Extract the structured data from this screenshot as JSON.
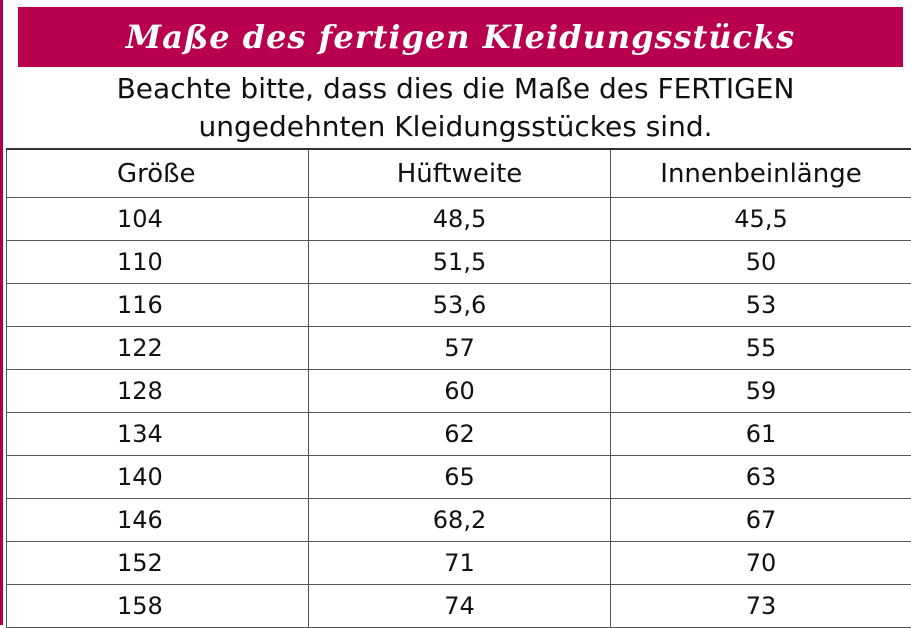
{
  "banner": {
    "title": "Maße des fertigen Kleidungsstücks"
  },
  "note": {
    "line1": "Beachte bitte, dass dies die Maße des FERTIGEN",
    "line2": "ungedehnten Kleidungsstückes sind."
  },
  "colors": {
    "accent": "#b8004e",
    "text": "#111111",
    "border": "#555555"
  },
  "table": {
    "headers": [
      "Größe",
      "Hüftweite",
      "Innenbeinlänge"
    ],
    "rows": [
      [
        "104",
        "48,5",
        "45,5"
      ],
      [
        "110",
        "51,5",
        "50"
      ],
      [
        "116",
        "53,6",
        "53"
      ],
      [
        "122",
        "57",
        "55"
      ],
      [
        "128",
        "60",
        "59"
      ],
      [
        "134",
        "62",
        "61"
      ],
      [
        "140",
        "65",
        "63"
      ],
      [
        "146",
        "68,2",
        "67"
      ],
      [
        "152",
        "71",
        "70"
      ],
      [
        "158",
        "74",
        "73"
      ]
    ]
  }
}
